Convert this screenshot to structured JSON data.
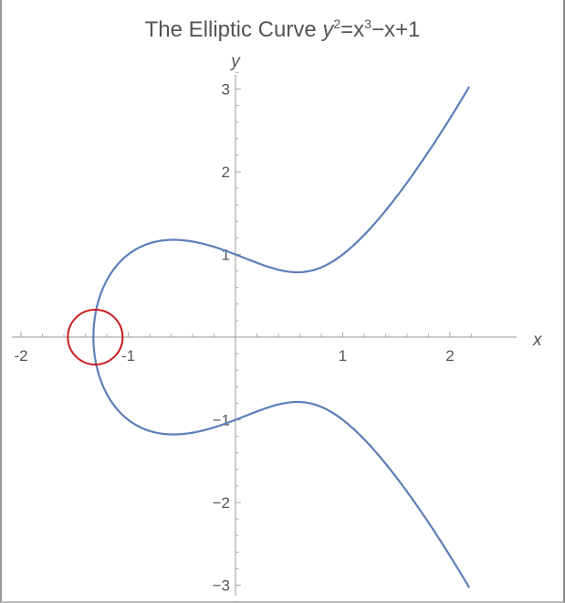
{
  "chart_data": {
    "type": "line",
    "title": {
      "prefix": "The Elliptic Curve ",
      "var_y": "y",
      "exp_2": "2",
      "eq_x": "=x",
      "exp_3": "3",
      "rest": "−x+1"
    },
    "xlabel": "x",
    "ylabel": "y",
    "xlim": [
      -2,
      2.6
    ],
    "ylim": [
      -3.3,
      3.5
    ],
    "x_ticks": [
      {
        "v": -2,
        "label": "-2"
      },
      {
        "v": -1,
        "label": "-1"
      },
      {
        "v": 1,
        "label": "1"
      },
      {
        "v": 2,
        "label": "2"
      }
    ],
    "y_ticks": [
      {
        "v": -3,
        "label": "−3"
      },
      {
        "v": -2,
        "label": "−2"
      },
      {
        "v": -1,
        "label": "−1"
      },
      {
        "v": 1,
        "label": "1"
      },
      {
        "v": 2,
        "label": "2"
      },
      {
        "v": 3,
        "label": "3"
      }
    ],
    "equation": {
      "a": -1,
      "b": 1
    },
    "x_range": [
      -1.3247,
      2.18
    ],
    "grid": false,
    "colors": {
      "curve": "#5b7fb8",
      "marker": "#c81e1e",
      "axis": "#aaaaaa",
      "text": "#555555"
    },
    "annotation": {
      "shape": "circle",
      "center_x": -1.3247,
      "center_y": 0,
      "color": "#c81e1e"
    }
  }
}
